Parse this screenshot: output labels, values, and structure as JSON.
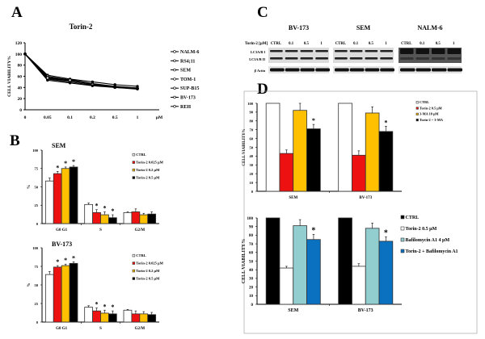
{
  "panels": {
    "a": "A",
    "b": "B",
    "c": "C",
    "d": "D"
  },
  "chart_data": [
    {
      "id": "A",
      "type": "line",
      "title": "Torin-2",
      "ylabel": "CELL VIABILITY%",
      "xunit": "µM",
      "categories": [
        "0",
        "0.05",
        "0.1",
        "0.2",
        "0.5",
        "1"
      ],
      "ylim": [
        0,
        120
      ],
      "yticks": [
        0,
        20,
        40,
        60,
        80,
        100,
        120
      ],
      "legend": "right",
      "series": [
        {
          "name": "NALM-6",
          "values": [
            100,
            62,
            55,
            50,
            45,
            42
          ]
        },
        {
          "name": "RS4;11",
          "values": [
            100,
            60,
            53,
            46,
            41,
            38
          ]
        },
        {
          "name": "SEM",
          "values": [
            100,
            58,
            54,
            47,
            42,
            39
          ]
        },
        {
          "name": "TOM-1",
          "values": [
            100,
            56,
            52,
            46,
            41,
            39
          ]
        },
        {
          "name": "SUP-B15",
          "values": [
            100,
            55,
            50,
            44,
            40,
            38
          ]
        },
        {
          "name": "BV-173",
          "values": [
            100,
            57,
            53,
            45,
            40,
            37
          ]
        },
        {
          "name": "REH",
          "values": [
            100,
            53,
            48,
            43,
            40,
            38
          ]
        }
      ]
    },
    {
      "id": "B-SEM",
      "type": "bar",
      "title": "SEM",
      "ylabel": "%",
      "categories": [
        "G0 G1",
        "S",
        "G2/M"
      ],
      "ylim": [
        0,
        100
      ],
      "yticks": [
        0,
        25,
        50,
        75,
        100
      ],
      "legend": "top-right",
      "series": [
        {
          "name": "CTRL",
          "color": "#ffffff",
          "values": [
            58,
            26,
            15
          ],
          "errors": [
            4,
            2,
            1
          ],
          "significant": [
            false,
            false,
            false
          ]
        },
        {
          "name": "Torin-2 0.025 µM",
          "color": "#ee1111",
          "values": [
            68,
            15,
            16
          ],
          "errors": [
            3,
            4,
            4
          ],
          "significant": [
            true,
            true,
            false
          ]
        },
        {
          "name": "Torin-2 0.2 µM",
          "color": "#ffc000",
          "values": [
            75,
            12,
            12
          ],
          "errors": [
            2,
            4,
            2
          ],
          "significant": [
            true,
            true,
            false
          ]
        },
        {
          "name": "Torin-2 0.5 µM",
          "color": "#000000",
          "values": [
            77,
            8,
            13
          ],
          "errors": [
            2,
            4,
            3
          ],
          "significant": [
            true,
            true,
            false
          ]
        }
      ]
    },
    {
      "id": "B-BV173",
      "type": "bar",
      "title": "BV-173",
      "ylabel": "%",
      "categories": [
        "G0 G1",
        "S",
        "G2/M"
      ],
      "ylim": [
        0,
        100
      ],
      "yticks": [
        0,
        25,
        50,
        75,
        100
      ],
      "legend": "top-right",
      "series": [
        {
          "name": "CTRL",
          "color": "#ffffff",
          "values": [
            64,
            20,
            16
          ],
          "errors": [
            4,
            2,
            1
          ],
          "significant": [
            false,
            false,
            false
          ]
        },
        {
          "name": "Torin-2 0.025 µM",
          "color": "#ee1111",
          "values": [
            74,
            15,
            11
          ],
          "errors": [
            2,
            4,
            4
          ],
          "significant": [
            true,
            true,
            false
          ]
        },
        {
          "name": "Torin-2 0.2 µM",
          "color": "#ffc000",
          "values": [
            76,
            12,
            11
          ],
          "errors": [
            2,
            4,
            3
          ],
          "significant": [
            true,
            true,
            false
          ]
        },
        {
          "name": "Torin-2 0.5 µM",
          "color": "#000000",
          "values": [
            79,
            11,
            10
          ],
          "errors": [
            2,
            4,
            3
          ],
          "significant": [
            true,
            true,
            false
          ]
        }
      ]
    },
    {
      "id": "D-top",
      "type": "bar",
      "ylabel": "CELL VIABILITY%",
      "categories": [
        "SEM",
        "BV-173"
      ],
      "ylim": [
        0,
        100
      ],
      "yticks": [
        0,
        10,
        20,
        30,
        40,
        50,
        60,
        70,
        80,
        90,
        100
      ],
      "legend": "right",
      "series": [
        {
          "name": "CTRL",
          "color": "#ffffff",
          "values": [
            100,
            100
          ],
          "errors": [
            0,
            0
          ],
          "significant": [
            false,
            false
          ]
        },
        {
          "name": "Torin-2 0.5 µM",
          "color": "#ee1111",
          "values": [
            43,
            41
          ],
          "errors": [
            4,
            5
          ],
          "significant": [
            false,
            false
          ]
        },
        {
          "name": "3-MA 10 µM",
          "color": "#ffc000",
          "values": [
            92,
            89
          ],
          "errors": [
            8,
            7
          ],
          "significant": [
            false,
            false
          ]
        },
        {
          "name": "Torin-2 + 3-MA",
          "color": "#000000",
          "values": [
            71,
            68
          ],
          "errors": [
            5,
            6
          ],
          "significant": [
            true,
            true
          ]
        }
      ]
    },
    {
      "id": "D-bottom",
      "type": "bar",
      "ylabel": "CELL VIABILITY%",
      "categories": [
        "SEM",
        "BV-173"
      ],
      "ylim": [
        0,
        100
      ],
      "yticks": [
        0,
        10,
        20,
        30,
        40,
        50,
        60,
        70,
        80,
        90,
        100
      ],
      "legend": "right",
      "series": [
        {
          "name": "CTRL",
          "color": "#000000",
          "values": [
            100,
            100
          ],
          "errors": [
            0,
            0
          ],
          "significant": [
            false,
            false
          ]
        },
        {
          "name": "Torin-2 0.5 µM",
          "color": "#ffffff",
          "values": [
            42,
            44
          ],
          "errors": [
            2,
            3
          ],
          "significant": [
            false,
            false
          ]
        },
        {
          "name": "Bafilomycin A1  4 µM",
          "color": "#92cdd0",
          "values": [
            91,
            88
          ],
          "errors": [
            7,
            6
          ],
          "significant": [
            false,
            false
          ]
        },
        {
          "name": "Torin-2 + Bafilomycin A1",
          "color": "#0a70c0",
          "values": [
            75,
            73
          ],
          "errors": [
            6,
            5
          ],
          "significant": [
            true,
            true
          ]
        }
      ]
    }
  ],
  "western_blot": {
    "unit_label": "Torin-2 [µM]",
    "cell_lines": [
      "BV-173",
      "SEM",
      "NALM-6"
    ],
    "lanes": [
      "CTRL",
      "0.1",
      "0.5",
      "1"
    ],
    "rows": [
      "LC3A/B I",
      "LC3A/B II",
      "β Actin"
    ]
  },
  "significance_mark": "*"
}
